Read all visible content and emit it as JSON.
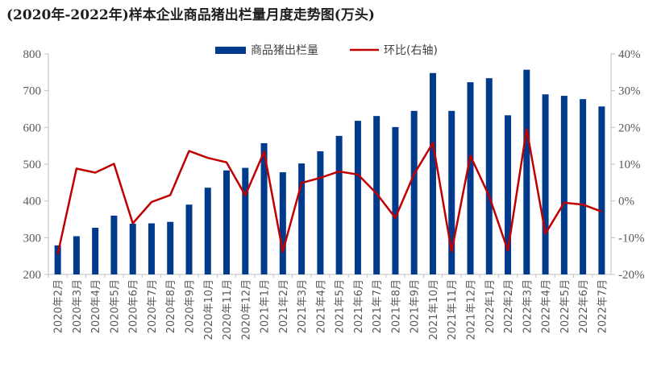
{
  "chart_data": {
    "type": "bar",
    "title": "(2020年-2022年)样本企业商品猪出栏量月度走势图(万头)",
    "categories": [
      "2020年2月",
      "2020年3月",
      "2020年4月",
      "2020年5月",
      "2020年6月",
      "2020年7月",
      "2020年8月",
      "2020年9月",
      "2020年10月",
      "2020年11月",
      "2020年12月",
      "2021年1月",
      "2021年2月",
      "2021年3月",
      "2021年4月",
      "2021年5月",
      "2021年6月",
      "2021年7月",
      "2021年8月",
      "2021年9月",
      "2021年10月",
      "2021年11月",
      "2021年12月",
      "2022年1月",
      "2022年2月",
      "2022年3月",
      "2022年4月",
      "2022年5月",
      "2022年6月",
      "2022年7月"
    ],
    "series": [
      {
        "name": "商品猪出栏量",
        "type": "bar",
        "axis": "left",
        "color": "#003a8c",
        "values": [
          279,
          304,
          327,
          360,
          338,
          339,
          343,
          390,
          436,
          483,
          490,
          557,
          478,
          502,
          535,
          577,
          618,
          631,
          601,
          645,
          748,
          645,
          723,
          734,
          633,
          757,
          690,
          686,
          677,
          657
        ]
      },
      {
        "name": "环比(右轴)",
        "type": "line",
        "axis": "right",
        "color": "#c00000",
        "values": [
          -14.5,
          8.8,
          7.7,
          10.1,
          -6.1,
          -0.3,
          1.6,
          13.6,
          11.7,
          10.5,
          1.5,
          13.4,
          -13.8,
          4.9,
          6.3,
          8.0,
          7.2,
          2.0,
          -4.6,
          7.3,
          15.8,
          -13.8,
          12.3,
          1.3,
          -13.5,
          19.6,
          -8.9,
          -0.5,
          -1.0,
          -2.9
        ]
      }
    ],
    "y_left": {
      "min": 200,
      "max": 800,
      "step": 100,
      "ticks": [
        "200",
        "300",
        "400",
        "500",
        "600",
        "700",
        "800"
      ]
    },
    "y_right": {
      "min": -20,
      "max": 40,
      "step": 10,
      "ticks": [
        "-20%",
        "-10%",
        "0%",
        "10%",
        "20%",
        "30%",
        "40%"
      ]
    },
    "legend": {
      "position": "top"
    },
    "grid": false
  }
}
